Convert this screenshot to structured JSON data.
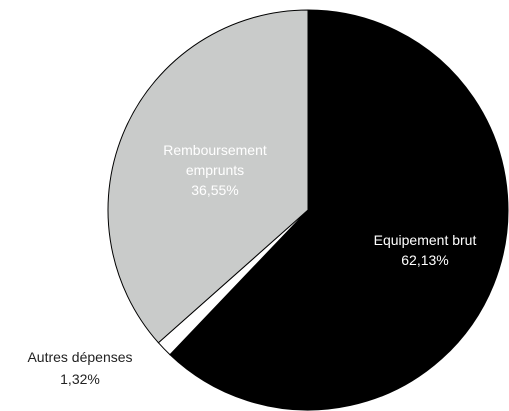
{
  "chart_data": {
    "type": "pie",
    "title": "",
    "slices": [
      {
        "name": "Equipement brut",
        "value": 62.13,
        "value_label": "62,13%",
        "label_lines": [
          "Equipement brut"
        ],
        "color": "#000000",
        "text_color": "#ffffff"
      },
      {
        "name": "Autres dépenses",
        "value": 1.32,
        "value_label": "1,32%",
        "label_lines": [
          "Autres dépenses"
        ],
        "color": "#ffffff",
        "text_color": "#222222"
      },
      {
        "name": "Remboursement emprunts",
        "value": 36.55,
        "value_label": "36,55%",
        "label_lines": [
          "Remboursement",
          "emprunts"
        ],
        "color": "#c9cbca",
        "text_color": "#ffffff"
      }
    ],
    "start_angle_deg": 0,
    "direction": "clockwise",
    "legend": "none"
  }
}
